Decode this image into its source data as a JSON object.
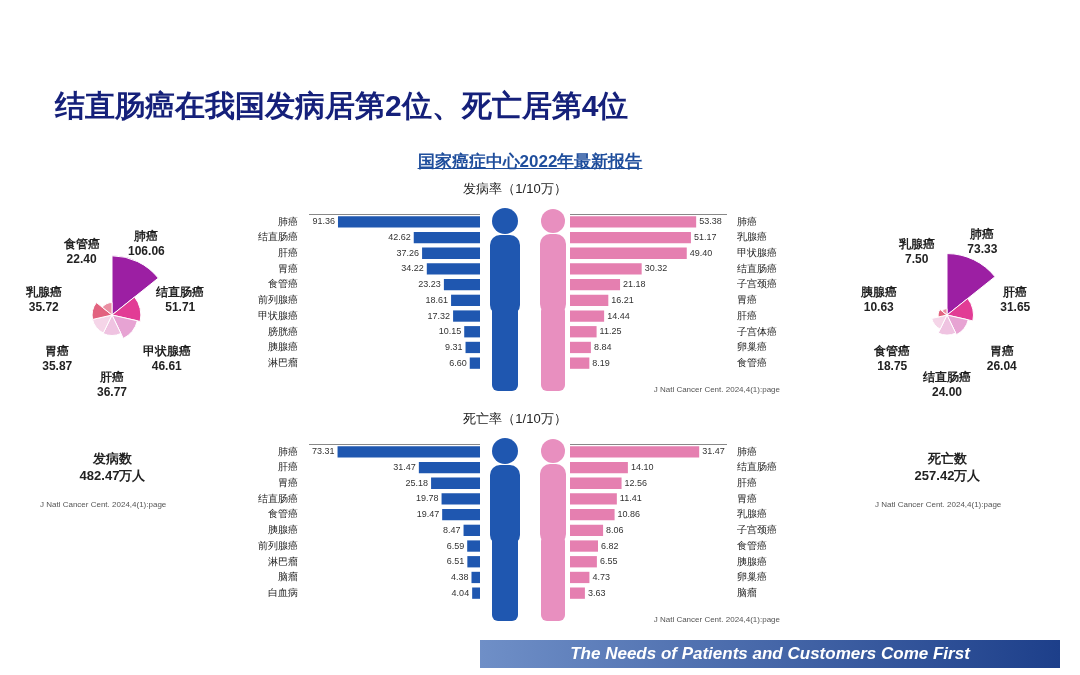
{
  "chart_data": [
    {
      "type": "other",
      "title": "结直肠癌在我国发病居第2位、死亡居第4位",
      "subtitle": "国家癌症中心2022年最新报告",
      "annotations": [
        "The Needs of Patients and Customers Come First"
      ]
    },
    {
      "type": "other",
      "categories": [
        "肺癌",
        "结直肠癌",
        "甲状腺癌",
        "肝癌",
        "胃癌",
        "乳腺癌",
        "食管癌"
      ],
      "values": [
        106.06,
        51.71,
        46.61,
        36.77,
        35.87,
        35.72,
        22.4
      ],
      "data_labels": true,
      "value_labels": [
        "106.06",
        "51.71",
        "46.61",
        "36.77",
        "35.87",
        "35.72",
        "22.40"
      ],
      "colors": [
        "#9c1fa3",
        "#e23c95",
        "#e7a3d3",
        "#efc3e1",
        "#f5d5e8",
        "#e2637f",
        "#ea8fa3"
      ],
      "annotations": [
        "发病数",
        "482.47万人",
        "J Natl Cancer Cent. 2024,4(1):page"
      ]
    },
    {
      "type": "bar",
      "orientation": "horizontal",
      "title": "发病率（1/10万）",
      "categories": [
        "肺癌",
        "结直肠癌",
        "肝癌",
        "胃癌",
        "食管癌",
        "前列腺癌",
        "甲状腺癌",
        "膀胱癌",
        "胰腺癌",
        "淋巴瘤"
      ],
      "values": [
        91.36,
        42.62,
        37.26,
        34.22,
        23.23,
        18.61,
        17.32,
        10.15,
        9.31,
        6.6
      ],
      "value_labels": [
        "91.36",
        "42.62",
        "37.26",
        "34.22",
        "23.23",
        "18.61",
        "17.32",
        "10.15",
        "9.31",
        "6.60"
      ],
      "color": "#1f57b0",
      "xlim": [
        110,
        0
      ],
      "data_labels": true,
      "tick_labels": "y"
    },
    {
      "type": "bar",
      "orientation": "horizontal",
      "categories": [
        "肺癌",
        "乳腺癌",
        "甲状腺癌",
        "结直肠癌",
        "子宫颈癌",
        "胃癌",
        "肝癌",
        "子宫体癌",
        "卵巢癌",
        "食管癌"
      ],
      "values": [
        53.38,
        51.17,
        49.4,
        30.32,
        21.18,
        16.21,
        14.44,
        11.25,
        8.84,
        8.19
      ],
      "value_labels": [
        "53.38",
        "51.17",
        "49.40",
        "30.32",
        "21.18",
        "16.21",
        "14.44",
        "11.25",
        "8.84",
        "8.19"
      ],
      "color": "#e57fb0",
      "xlim": [
        0,
        66
      ],
      "data_labels": true,
      "tick_labels": "y",
      "annotations": [
        "J Natl Cancer Cent. 2024,4(1):page"
      ]
    },
    {
      "type": "bar",
      "orientation": "horizontal",
      "title": "死亡率（1/10万）",
      "categories": [
        "肺癌",
        "肝癌",
        "胃癌",
        "结直肠癌",
        "食管癌",
        "胰腺癌",
        "前列腺癌",
        "淋巴瘤",
        "脑瘤",
        "白血病"
      ],
      "values": [
        73.31,
        31.47,
        25.18,
        19.78,
        19.47,
        8.47,
        6.59,
        6.51,
        4.38,
        4.04
      ],
      "value_labels": [
        "73.31",
        "31.47",
        "25.18",
        "19.78",
        "19.47",
        "8.47",
        "6.59",
        "6.51",
        "4.38",
        "4.04"
      ],
      "color": "#1f57b0",
      "xlim": [
        88,
        0
      ],
      "data_labels": true,
      "tick_labels": "y"
    },
    {
      "type": "bar",
      "orientation": "horizontal",
      "categories": [
        "肺癌",
        "结直肠癌",
        "肝癌",
        "胃癌",
        "乳腺癌",
        "子宫颈癌",
        "食管癌",
        "胰腺癌",
        "卵巢癌",
        "脑瘤"
      ],
      "values": [
        31.47,
        14.1,
        12.56,
        11.41,
        10.86,
        8.06,
        6.82,
        6.55,
        4.73,
        3.63
      ],
      "value_labels": [
        "31.47",
        "14.10",
        "12.56",
        "11.41",
        "10.86",
        "8.06",
        "6.82",
        "6.55",
        "4.73",
        "3.63"
      ],
      "color": "#e57fb0",
      "xlim": [
        0,
        38
      ],
      "data_labels": true,
      "tick_labels": "y",
      "annotations": [
        "J Natl Cancer Cent. 2024,4(1):page"
      ]
    },
    {
      "type": "other",
      "categories": [
        "肺癌",
        "肝癌",
        "胃癌",
        "结直肠癌",
        "食管癌",
        "胰腺癌",
        "乳腺癌"
      ],
      "values": [
        73.33,
        31.65,
        26.04,
        24.0,
        18.75,
        10.63,
        7.5
      ],
      "data_labels": true,
      "value_labels": [
        "73.33",
        "31.65",
        "26.04",
        "24.00",
        "18.75",
        "10.63",
        "7.50"
      ],
      "colors": [
        "#9c1fa3",
        "#e23c95",
        "#e7a3d3",
        "#efc3e1",
        "#f5d5e8",
        "#e2637f",
        "#ea8fa3"
      ],
      "annotations": [
        "死亡数",
        "257.42万人",
        "J Natl Cancer Cent. 2024,4(1):page"
      ]
    }
  ]
}
